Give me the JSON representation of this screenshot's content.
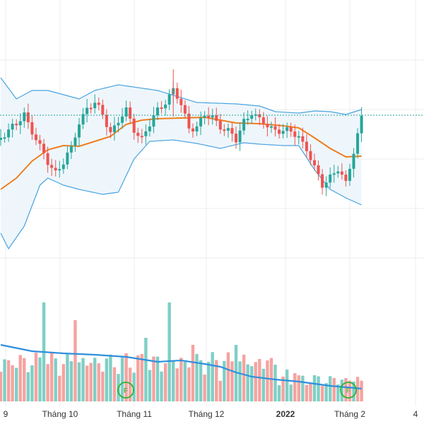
{
  "chart_data": {
    "type": "candlestick",
    "price_axis_visible": false,
    "months": [
      {
        "label": "9"
      },
      {
        "label": "Tháng 10"
      },
      {
        "label": "Tháng 11"
      },
      {
        "label": "Tháng 12"
      },
      {
        "label": "2022",
        "bold": true
      },
      {
        "label": "Tháng 2"
      },
      {
        "label": "4"
      }
    ],
    "colors": {
      "up": "#26a69a",
      "down": "#ef5350",
      "up_volume": "#7fcfc6",
      "down_volume": "#f5a3a0",
      "ma": "#ef7d1f",
      "bands": "#4aa3df",
      "band_fill": "#eef6fc",
      "volume_ma": "#2f8fdd",
      "last_price_line": "#26a69a",
      "grid": "#eeeeee",
      "event_marker": "#2bb32b"
    },
    "grid": true,
    "indicators": {
      "bollinger_bands": true,
      "moving_average": true,
      "volume_moving_average": true,
      "last_price_line": true
    },
    "event_markers": [
      {
        "label": "F",
        "month_index": 2
      },
      {
        "label": "F",
        "month_index": 5
      }
    ]
  }
}
